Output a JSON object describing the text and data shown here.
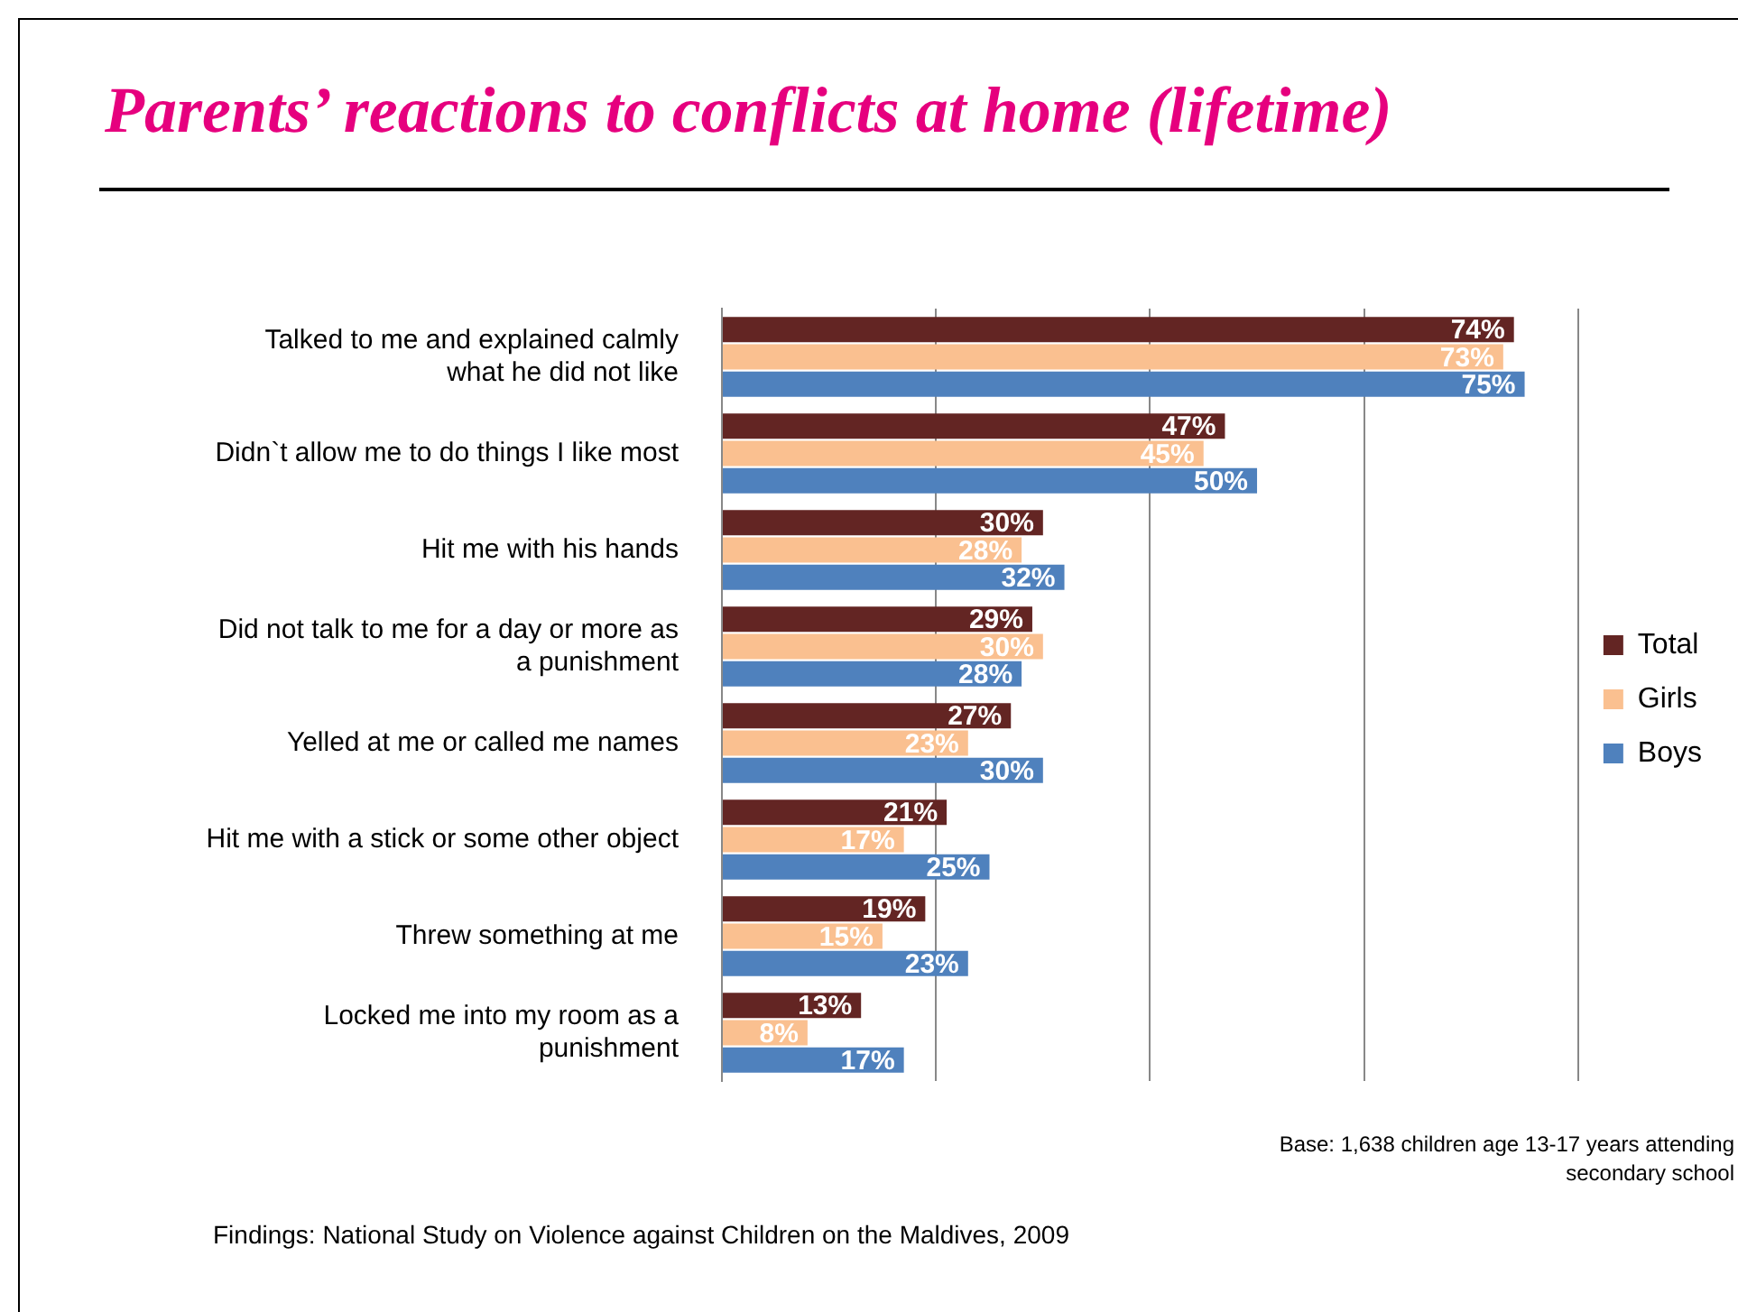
{
  "chart_data": {
    "type": "bar",
    "orientation": "horizontal",
    "title": "Parents’ reactions to conflicts at home (lifetime)",
    "categories": [
      "Talked to me and explained calmly what he did not like",
      "Didn`t allow me to do things I like most",
      "Hit me with his hands",
      "Did not talk to me for a day or more as a punishment",
      "Yelled at me or called me names",
      "Hit me with a stick or some other object",
      "Threw something at me",
      "Locked me into my room as a punishment"
    ],
    "series": [
      {
        "name": "Total",
        "color": "#632523",
        "values": [
          74,
          47,
          30,
          29,
          27,
          21,
          19,
          13
        ],
        "value_labels": [
          "74%",
          "47%",
          "30%",
          "29%",
          "27%",
          "21%",
          "19%",
          "13%"
        ]
      },
      {
        "name": "Girls",
        "color": "#fac090",
        "values": [
          73,
          45,
          28,
          30,
          23,
          17,
          15,
          8
        ],
        "value_labels": [
          "73%",
          "45%",
          "28%",
          "30%",
          "23%",
          "17%",
          "15%",
          "8%"
        ]
      },
      {
        "name": "Boys",
        "color": "#4f81bd",
        "values": [
          75,
          50,
          32,
          28,
          30,
          25,
          23,
          17
        ],
        "value_labels": [
          "75%",
          "50%",
          "32%",
          "28%",
          "30%",
          "25%",
          "23%",
          "17%"
        ]
      }
    ],
    "xlim": [
      0,
      80
    ],
    "xticks": [
      {
        "value": 0,
        "label": null
      },
      {
        "value": 20,
        "label": null
      },
      {
        "value": 40,
        "label": null
      },
      {
        "value": 60,
        "label": null
      },
      {
        "value": 80,
        "label": null
      }
    ],
    "grid": "x",
    "legend": "right",
    "tick_labels": "y",
    "annotations": [
      "Base: 1,638 children age 13-17 years attending secondary school",
      "Findings: National Study on Violence against Children on the Maldives, 2009"
    ]
  }
}
